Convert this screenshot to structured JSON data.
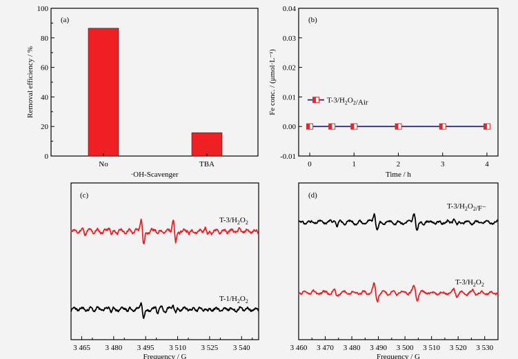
{
  "chart_data": [
    {
      "panel": "(a)",
      "type": "bar",
      "categories": [
        "No",
        "TBA"
      ],
      "values": [
        86.5,
        15.8
      ],
      "xlabel": "·OH-Scavenger",
      "ylabel": "Removal efficiency / %",
      "ylim": [
        0,
        100
      ],
      "yticks": [
        0,
        20,
        40,
        60,
        80,
        100
      ],
      "color": "#ee2024"
    },
    {
      "panel": "(b)",
      "type": "line",
      "x": [
        0,
        0.5,
        1,
        2,
        3,
        4
      ],
      "series": [
        {
          "name": "T-3/H2O2/Air",
          "values": [
            0,
            0,
            0,
            0,
            0,
            0
          ]
        }
      ],
      "xlabel": "Time / h",
      "ylabel": "Fe conc. / (μmol·L⁻¹)",
      "xlim": [
        -0.25,
        4.25
      ],
      "ylim": [
        -0.01,
        0.04
      ],
      "xticks": [
        0,
        1,
        2,
        3,
        4
      ],
      "yticks": [
        "-0.01",
        "0.00",
        "0.01",
        "0.02",
        "0.03",
        "0.04"
      ],
      "legend": "upper-left",
      "line_color": "#2b2f8f",
      "marker_color": "#e8262a"
    },
    {
      "panel": "(c)",
      "type": "line",
      "xlabel": "Frequency / G",
      "xlim": [
        3460,
        3548
      ],
      "xticks": [
        "3 465",
        "3 480",
        "3 495",
        "3 510",
        "3 525",
        "3 540"
      ],
      "series": [
        {
          "name": "T-3/H2O2",
          "color": "#ee2024"
        },
        {
          "name": "T-1/H2O2",
          "color": "#000000"
        }
      ]
    },
    {
      "panel": "(d)",
      "type": "line",
      "xlabel": "Frequency / G",
      "xlim": [
        3460,
        3535
      ],
      "xticks": [
        "3 460",
        "3 470",
        "3 480",
        "3 490",
        "3 500",
        "3 510",
        "3 520",
        "3 530"
      ],
      "series": [
        {
          "name": "T-3/H2O2/F⁻",
          "color": "#000000"
        },
        {
          "name": "T-3/H2O2",
          "color": "#ee2024"
        }
      ]
    }
  ]
}
